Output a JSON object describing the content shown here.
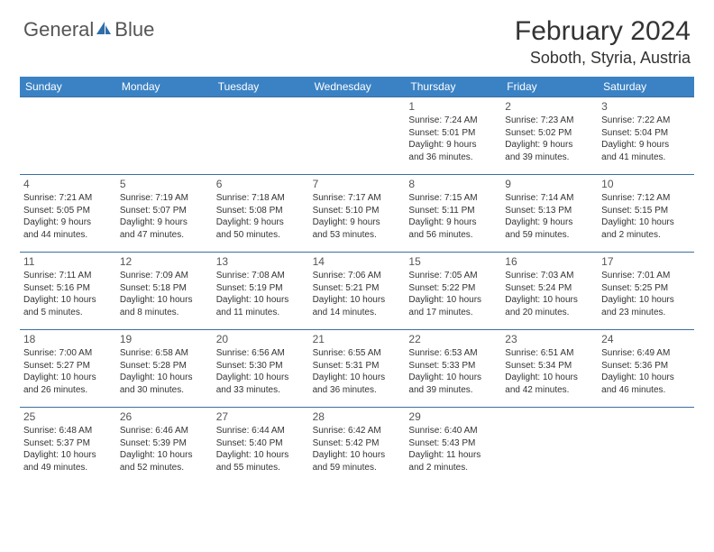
{
  "brand": {
    "part1": "General",
    "part2": "Blue"
  },
  "title": "February 2024",
  "location": "Soboth, Styria, Austria",
  "colors": {
    "header_bg": "#3b82c4",
    "header_text": "#ffffff",
    "border": "#3b6fa0",
    "text": "#333333",
    "muted": "#555555"
  },
  "typography": {
    "title_fontsize": 30,
    "location_fontsize": 18,
    "dayhead_fontsize": 12,
    "daynum_fontsize": 12,
    "info_fontsize": 10
  },
  "day_names": [
    "Sunday",
    "Monday",
    "Tuesday",
    "Wednesday",
    "Thursday",
    "Friday",
    "Saturday"
  ],
  "weeks": [
    [
      null,
      null,
      null,
      null,
      {
        "n": "1",
        "sr": "Sunrise: 7:24 AM",
        "ss": "Sunset: 5:01 PM",
        "d1": "Daylight: 9 hours",
        "d2": "and 36 minutes."
      },
      {
        "n": "2",
        "sr": "Sunrise: 7:23 AM",
        "ss": "Sunset: 5:02 PM",
        "d1": "Daylight: 9 hours",
        "d2": "and 39 minutes."
      },
      {
        "n": "3",
        "sr": "Sunrise: 7:22 AM",
        "ss": "Sunset: 5:04 PM",
        "d1": "Daylight: 9 hours",
        "d2": "and 41 minutes."
      }
    ],
    [
      {
        "n": "4",
        "sr": "Sunrise: 7:21 AM",
        "ss": "Sunset: 5:05 PM",
        "d1": "Daylight: 9 hours",
        "d2": "and 44 minutes."
      },
      {
        "n": "5",
        "sr": "Sunrise: 7:19 AM",
        "ss": "Sunset: 5:07 PM",
        "d1": "Daylight: 9 hours",
        "d2": "and 47 minutes."
      },
      {
        "n": "6",
        "sr": "Sunrise: 7:18 AM",
        "ss": "Sunset: 5:08 PM",
        "d1": "Daylight: 9 hours",
        "d2": "and 50 minutes."
      },
      {
        "n": "7",
        "sr": "Sunrise: 7:17 AM",
        "ss": "Sunset: 5:10 PM",
        "d1": "Daylight: 9 hours",
        "d2": "and 53 minutes."
      },
      {
        "n": "8",
        "sr": "Sunrise: 7:15 AM",
        "ss": "Sunset: 5:11 PM",
        "d1": "Daylight: 9 hours",
        "d2": "and 56 minutes."
      },
      {
        "n": "9",
        "sr": "Sunrise: 7:14 AM",
        "ss": "Sunset: 5:13 PM",
        "d1": "Daylight: 9 hours",
        "d2": "and 59 minutes."
      },
      {
        "n": "10",
        "sr": "Sunrise: 7:12 AM",
        "ss": "Sunset: 5:15 PM",
        "d1": "Daylight: 10 hours",
        "d2": "and 2 minutes."
      }
    ],
    [
      {
        "n": "11",
        "sr": "Sunrise: 7:11 AM",
        "ss": "Sunset: 5:16 PM",
        "d1": "Daylight: 10 hours",
        "d2": "and 5 minutes."
      },
      {
        "n": "12",
        "sr": "Sunrise: 7:09 AM",
        "ss": "Sunset: 5:18 PM",
        "d1": "Daylight: 10 hours",
        "d2": "and 8 minutes."
      },
      {
        "n": "13",
        "sr": "Sunrise: 7:08 AM",
        "ss": "Sunset: 5:19 PM",
        "d1": "Daylight: 10 hours",
        "d2": "and 11 minutes."
      },
      {
        "n": "14",
        "sr": "Sunrise: 7:06 AM",
        "ss": "Sunset: 5:21 PM",
        "d1": "Daylight: 10 hours",
        "d2": "and 14 minutes."
      },
      {
        "n": "15",
        "sr": "Sunrise: 7:05 AM",
        "ss": "Sunset: 5:22 PM",
        "d1": "Daylight: 10 hours",
        "d2": "and 17 minutes."
      },
      {
        "n": "16",
        "sr": "Sunrise: 7:03 AM",
        "ss": "Sunset: 5:24 PM",
        "d1": "Daylight: 10 hours",
        "d2": "and 20 minutes."
      },
      {
        "n": "17",
        "sr": "Sunrise: 7:01 AM",
        "ss": "Sunset: 5:25 PM",
        "d1": "Daylight: 10 hours",
        "d2": "and 23 minutes."
      }
    ],
    [
      {
        "n": "18",
        "sr": "Sunrise: 7:00 AM",
        "ss": "Sunset: 5:27 PM",
        "d1": "Daylight: 10 hours",
        "d2": "and 26 minutes."
      },
      {
        "n": "19",
        "sr": "Sunrise: 6:58 AM",
        "ss": "Sunset: 5:28 PM",
        "d1": "Daylight: 10 hours",
        "d2": "and 30 minutes."
      },
      {
        "n": "20",
        "sr": "Sunrise: 6:56 AM",
        "ss": "Sunset: 5:30 PM",
        "d1": "Daylight: 10 hours",
        "d2": "and 33 minutes."
      },
      {
        "n": "21",
        "sr": "Sunrise: 6:55 AM",
        "ss": "Sunset: 5:31 PM",
        "d1": "Daylight: 10 hours",
        "d2": "and 36 minutes."
      },
      {
        "n": "22",
        "sr": "Sunrise: 6:53 AM",
        "ss": "Sunset: 5:33 PM",
        "d1": "Daylight: 10 hours",
        "d2": "and 39 minutes."
      },
      {
        "n": "23",
        "sr": "Sunrise: 6:51 AM",
        "ss": "Sunset: 5:34 PM",
        "d1": "Daylight: 10 hours",
        "d2": "and 42 minutes."
      },
      {
        "n": "24",
        "sr": "Sunrise: 6:49 AM",
        "ss": "Sunset: 5:36 PM",
        "d1": "Daylight: 10 hours",
        "d2": "and 46 minutes."
      }
    ],
    [
      {
        "n": "25",
        "sr": "Sunrise: 6:48 AM",
        "ss": "Sunset: 5:37 PM",
        "d1": "Daylight: 10 hours",
        "d2": "and 49 minutes."
      },
      {
        "n": "26",
        "sr": "Sunrise: 6:46 AM",
        "ss": "Sunset: 5:39 PM",
        "d1": "Daylight: 10 hours",
        "d2": "and 52 minutes."
      },
      {
        "n": "27",
        "sr": "Sunrise: 6:44 AM",
        "ss": "Sunset: 5:40 PM",
        "d1": "Daylight: 10 hours",
        "d2": "and 55 minutes."
      },
      {
        "n": "28",
        "sr": "Sunrise: 6:42 AM",
        "ss": "Sunset: 5:42 PM",
        "d1": "Daylight: 10 hours",
        "d2": "and 59 minutes."
      },
      {
        "n": "29",
        "sr": "Sunrise: 6:40 AM",
        "ss": "Sunset: 5:43 PM",
        "d1": "Daylight: 11 hours",
        "d2": "and 2 minutes."
      },
      null,
      null
    ]
  ]
}
